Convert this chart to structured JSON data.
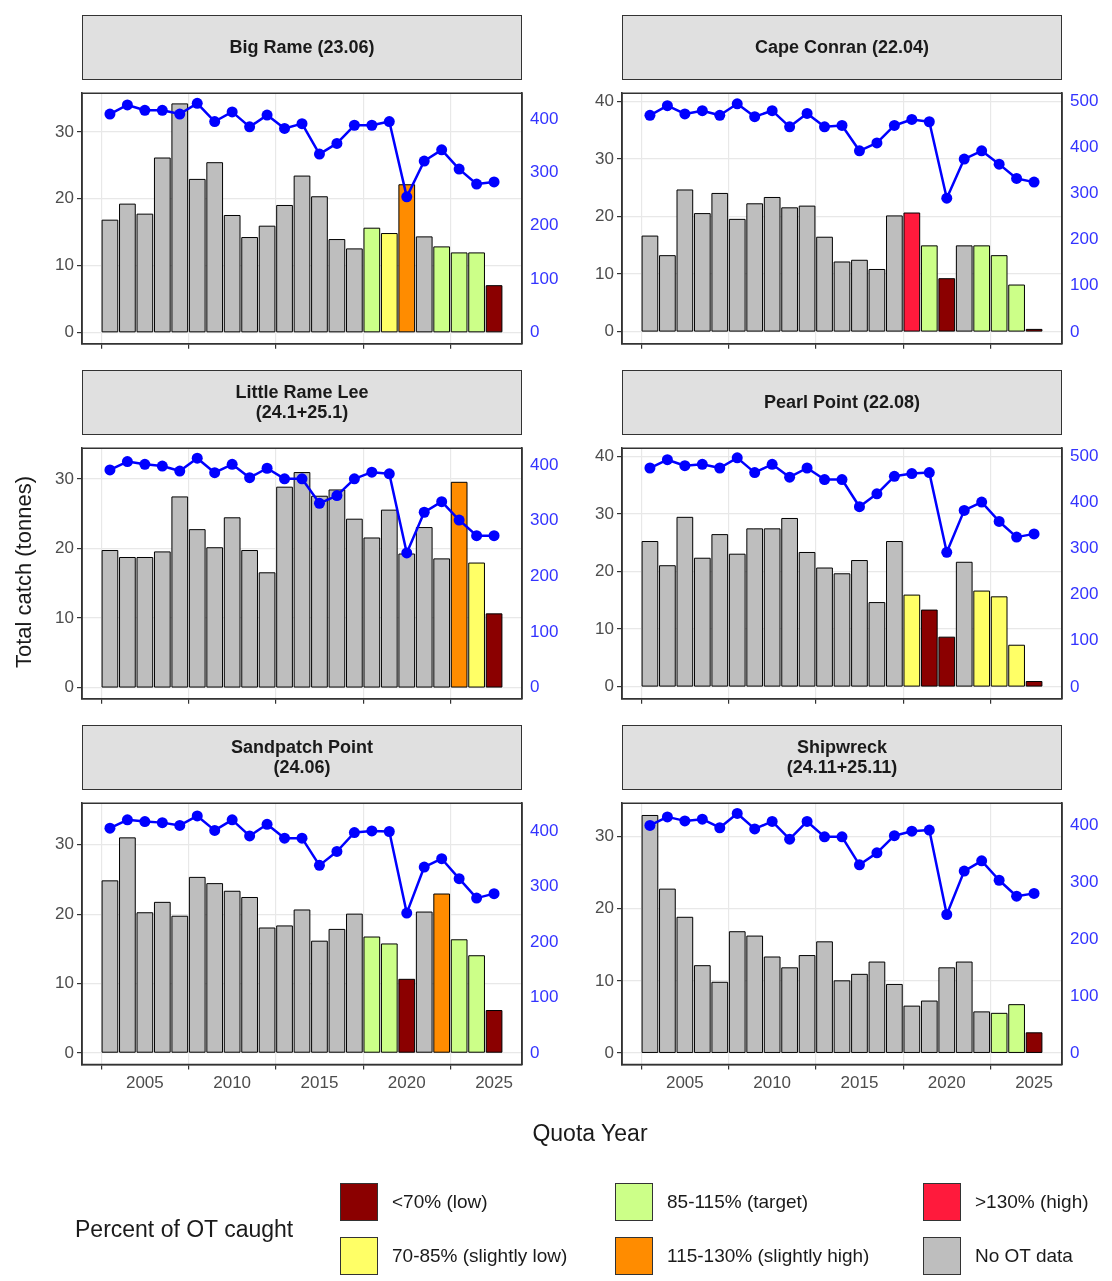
{
  "chart_data": [
    {
      "type": "bar",
      "title": "Big Rame (23.06)",
      "legend_title": "Percent of OT caught",
      "legend": "bottom",
      "stacked": true,
      "grid": true,
      "marker": "circle",
      "tick_labels": "y",
      "x": [
        2003,
        2004,
        2005,
        2006,
        2007,
        2008,
        2009,
        2010,
        2011,
        2012,
        2013,
        2014,
        2015,
        2016,
        2017,
        2018,
        2019,
        2020,
        2021,
        2022,
        2023,
        2024,
        2025
      ],
      "xlim": [
        2001.4,
        2026.6
      ],
      "xticks": [
        2005,
        2010,
        2015,
        2020,
        2025
      ],
      "ylim": [
        -1.7,
        35.8
      ],
      "yticks": [
        0,
        10,
        20,
        30
      ],
      "y2lim": [
        -21,
        448
      ],
      "y2ticks": [
        0,
        100,
        200,
        300,
        400
      ],
      "series": [
        {
          "name": "<70% (low)",
          "color": "#8b0000",
          "values": [
            null,
            null,
            null,
            null,
            null,
            null,
            null,
            null,
            null,
            null,
            null,
            null,
            null,
            null,
            null,
            null,
            null,
            null,
            null,
            null,
            null,
            null,
            7.0
          ]
        },
        {
          "name": "70-85% (slightly low)",
          "color": "#ffff66",
          "values": [
            null,
            null,
            null,
            null,
            null,
            null,
            null,
            null,
            null,
            null,
            null,
            null,
            null,
            null,
            null,
            null,
            14.8,
            null,
            null,
            null,
            null,
            null,
            null
          ]
        },
        {
          "name": "85-115% (target)",
          "color": "#ccff88",
          "values": [
            null,
            null,
            null,
            null,
            null,
            null,
            null,
            null,
            null,
            null,
            null,
            null,
            null,
            null,
            null,
            15.6,
            null,
            null,
            null,
            12.8,
            11.9,
            11.9,
            null
          ]
        },
        {
          "name": "115-130% (slightly high)",
          "color": "#ff8c00",
          "values": [
            null,
            null,
            null,
            null,
            null,
            null,
            null,
            null,
            null,
            null,
            null,
            null,
            null,
            null,
            null,
            null,
            null,
            22.1,
            null,
            null,
            null,
            null,
            null
          ]
        },
        {
          "name": ">130% (high)",
          "color": "#ff1a3c",
          "values": [
            null,
            null,
            null,
            null,
            null,
            null,
            null,
            null,
            null,
            null,
            null,
            null,
            null,
            null,
            null,
            null,
            null,
            null,
            null,
            null,
            null,
            null,
            null
          ]
        },
        {
          "name": "No OT data",
          "color": "#bebebe",
          "values": [
            16.8,
            19.2,
            17.7,
            26.1,
            34.2,
            22.9,
            25.4,
            17.5,
            14.2,
            15.9,
            19.0,
            23.4,
            20.3,
            13.9,
            12.5,
            null,
            null,
            null,
            14.3,
            null,
            null,
            null,
            null
          ]
        },
        {
          "type": "line",
          "axis": "y2",
          "color": "#0000ff",
          "values": [
            409,
            426,
            416,
            416,
            409,
            429,
            395,
            413,
            385,
            407,
            382,
            391,
            334,
            354,
            388,
            388,
            395,
            254,
            321,
            342,
            306,
            278,
            282
          ]
        }
      ]
    },
    {
      "type": "bar",
      "title": "Cape Conran (22.04)",
      "stacked": true,
      "grid": true,
      "marker": "circle",
      "tick_labels": "y",
      "x": [
        2003,
        2004,
        2005,
        2006,
        2007,
        2008,
        2009,
        2010,
        2011,
        2012,
        2013,
        2014,
        2015,
        2016,
        2017,
        2018,
        2019,
        2020,
        2021,
        2022,
        2023,
        2024,
        2025
      ],
      "xlim": [
        2001.4,
        2026.6
      ],
      "xticks": [
        2005,
        2010,
        2015,
        2020,
        2025
      ],
      "ylim": [
        -2.1,
        41.4
      ],
      "yticks": [
        0,
        10,
        20,
        30,
        40
      ],
      "y2lim": [
        -26,
        518
      ],
      "y2ticks": [
        0,
        100,
        200,
        300,
        400,
        500
      ],
      "series": [
        {
          "color": "#8b0000",
          "values": [
            null,
            null,
            null,
            null,
            null,
            null,
            null,
            null,
            null,
            null,
            null,
            null,
            null,
            null,
            null,
            null,
            null,
            9.2,
            null,
            null,
            null,
            null,
            0.4
          ]
        },
        {
          "color": "#ccff88",
          "values": [
            null,
            null,
            null,
            null,
            null,
            null,
            null,
            null,
            null,
            null,
            null,
            null,
            null,
            null,
            null,
            null,
            14.9,
            null,
            null,
            14.9,
            13.2,
            8.1,
            null
          ]
        },
        {
          "color": "#ff1a3c",
          "values": [
            null,
            null,
            null,
            null,
            null,
            null,
            null,
            null,
            null,
            null,
            null,
            null,
            null,
            null,
            null,
            20.6,
            null,
            null,
            null,
            null,
            null,
            null,
            null
          ]
        },
        {
          "color": "#bebebe",
          "values": [
            16.6,
            13.2,
            24.6,
            20.5,
            24.0,
            19.5,
            22.2,
            23.3,
            21.5,
            21.8,
            16.4,
            12.1,
            12.4,
            10.8,
            20.1,
            null,
            null,
            null,
            14.9,
            null,
            null,
            null,
            null
          ]
        },
        {
          "type": "line",
          "axis": "y2",
          "color": "#0000ff",
          "values": [
            470,
            491,
            473,
            480,
            470,
            495,
            467,
            480,
            445,
            474,
            445,
            448,
            393,
            410,
            448,
            461,
            456,
            290,
            375,
            393,
            364,
            333,
            325
          ]
        }
      ]
    },
    {
      "type": "bar",
      "title": "Little Rame Lee\n(24.1+25.1)",
      "ylabel": "Total catch (tonnes)",
      "stacked": true,
      "grid": true,
      "marker": "circle",
      "tick_labels": "y",
      "x": [
        2003,
        2004,
        2005,
        2006,
        2007,
        2008,
        2009,
        2010,
        2011,
        2012,
        2013,
        2014,
        2015,
        2016,
        2017,
        2018,
        2019,
        2020,
        2021,
        2022,
        2023,
        2024,
        2025
      ],
      "xlim": [
        2001.4,
        2026.6
      ],
      "xticks": [
        2005,
        2010,
        2015,
        2020,
        2025
      ],
      "ylim": [
        -1.6,
        34.4
      ],
      "yticks": [
        0,
        10,
        20,
        30
      ],
      "y2lim": [
        -20,
        430
      ],
      "y2ticks": [
        0,
        100,
        200,
        300,
        400
      ],
      "series": [
        {
          "color": "#8b0000",
          "values": [
            null,
            null,
            null,
            null,
            null,
            null,
            null,
            null,
            null,
            null,
            null,
            null,
            null,
            null,
            null,
            null,
            null,
            null,
            null,
            null,
            null,
            null,
            10.6
          ]
        },
        {
          "color": "#ffff66",
          "values": [
            null,
            null,
            null,
            null,
            null,
            null,
            null,
            null,
            null,
            null,
            null,
            null,
            null,
            null,
            null,
            null,
            null,
            null,
            null,
            null,
            null,
            17.9,
            null
          ]
        },
        {
          "color": "#ff8c00",
          "values": [
            null,
            null,
            null,
            null,
            null,
            null,
            null,
            null,
            null,
            null,
            null,
            null,
            null,
            null,
            null,
            null,
            null,
            null,
            null,
            null,
            29.5,
            null,
            null
          ]
        },
        {
          "color": "#bebebe",
          "values": [
            19.7,
            18.7,
            18.7,
            19.5,
            27.4,
            22.7,
            20.1,
            24.4,
            19.7,
            16.5,
            28.8,
            30.9,
            27.5,
            28.4,
            24.2,
            21.5,
            25.5,
            19.2,
            23.0,
            18.5,
            null,
            null,
            null
          ]
        },
        {
          "type": "line",
          "axis": "y2",
          "color": "#0000ff",
          "values": [
            391,
            406,
            401,
            398,
            389,
            412,
            386,
            401,
            377,
            394,
            375,
            375,
            331,
            345,
            375,
            387,
            384,
            242,
            315,
            334,
            301,
            273,
            273
          ]
        }
      ]
    },
    {
      "type": "bar",
      "title": "Pearl Point (22.08)",
      "stacked": true,
      "grid": true,
      "marker": "circle",
      "tick_labels": "y",
      "x": [
        2003,
        2004,
        2005,
        2006,
        2007,
        2008,
        2009,
        2010,
        2011,
        2012,
        2013,
        2014,
        2015,
        2016,
        2017,
        2018,
        2019,
        2020,
        2021,
        2022,
        2023,
        2024,
        2025
      ],
      "xlim": [
        2001.4,
        2026.6
      ],
      "xticks": [
        2005,
        2010,
        2015,
        2020,
        2025
      ],
      "ylim": [
        -2.1,
        41.4
      ],
      "yticks": [
        0,
        10,
        20,
        30,
        40
      ],
      "y2lim": [
        -26,
        518
      ],
      "y2ticks": [
        0,
        100,
        200,
        300,
        400,
        500
      ],
      "series": [
        {
          "color": "#8b0000",
          "values": [
            null,
            null,
            null,
            null,
            null,
            null,
            null,
            null,
            null,
            null,
            null,
            null,
            null,
            null,
            null,
            null,
            13.3,
            8.6,
            null,
            null,
            null,
            null,
            0.9
          ]
        },
        {
          "color": "#ffff66",
          "values": [
            null,
            null,
            null,
            null,
            null,
            null,
            null,
            null,
            null,
            null,
            null,
            null,
            null,
            null,
            null,
            15.9,
            null,
            null,
            null,
            16.6,
            15.6,
            7.2,
            null
          ]
        },
        {
          "color": "#bebebe",
          "values": [
            25.2,
            21.0,
            29.4,
            22.3,
            26.4,
            23.0,
            27.4,
            27.4,
            29.2,
            23.3,
            20.6,
            19.6,
            21.9,
            14.6,
            25.2,
            null,
            null,
            null,
            21.6,
            null,
            null,
            null,
            null
          ]
        },
        {
          "type": "line",
          "axis": "y2",
          "color": "#0000ff",
          "values": [
            475,
            493,
            480,
            483,
            475,
            497,
            465,
            483,
            455,
            475,
            450,
            450,
            391,
            419,
            457,
            463,
            465,
            292,
            383,
            401,
            359,
            325,
            332
          ]
        }
      ]
    },
    {
      "type": "bar",
      "title": "Sandpatch Point\n(24.06)",
      "xlabel": "Quota Year",
      "stacked": true,
      "grid": true,
      "marker": "circle",
      "x": [
        2003,
        2004,
        2005,
        2006,
        2007,
        2008,
        2009,
        2010,
        2011,
        2012,
        2013,
        2014,
        2015,
        2016,
        2017,
        2018,
        2019,
        2020,
        2021,
        2022,
        2023,
        2024,
        2025
      ],
      "xlim": [
        2001.4,
        2026.6
      ],
      "xticks": [
        2005,
        2010,
        2015,
        2020,
        2025
      ],
      "ylim": [
        -1.7,
        36.0
      ],
      "yticks": [
        0,
        10,
        20,
        30
      ],
      "y2lim": [
        -21,
        450
      ],
      "y2ticks": [
        0,
        100,
        200,
        300,
        400
      ],
      "series": [
        {
          "color": "#8b0000",
          "values": [
            null,
            null,
            null,
            null,
            null,
            null,
            null,
            null,
            null,
            null,
            null,
            null,
            null,
            null,
            null,
            null,
            null,
            10.6,
            null,
            null,
            null,
            null,
            6.1
          ]
        },
        {
          "color": "#ccff88",
          "values": [
            null,
            null,
            null,
            null,
            null,
            null,
            null,
            null,
            null,
            null,
            null,
            null,
            null,
            null,
            null,
            16.7,
            15.7,
            null,
            null,
            null,
            16.3,
            14.0,
            null
          ]
        },
        {
          "color": "#ff8c00",
          "values": [
            null,
            null,
            null,
            null,
            null,
            null,
            null,
            null,
            null,
            null,
            null,
            null,
            null,
            null,
            null,
            null,
            null,
            null,
            null,
            22.9,
            null,
            null,
            null
          ]
        },
        {
          "color": "#bebebe",
          "values": [
            24.8,
            31.0,
            20.2,
            21.7,
            19.7,
            25.3,
            24.4,
            23.3,
            22.4,
            18.0,
            18.3,
            20.6,
            16.1,
            17.8,
            20.0,
            null,
            null,
            null,
            20.3,
            null,
            null,
            null,
            null
          ]
        },
        {
          "type": "line",
          "axis": "y2",
          "color": "#0000ff",
          "values": [
            405,
            420,
            417,
            415,
            410,
            427,
            401,
            420,
            391,
            412,
            387,
            387,
            338,
            363,
            397,
            400,
            399,
            252,
            335,
            350,
            314,
            279,
            287
          ]
        }
      ]
    },
    {
      "type": "bar",
      "title": "Shipwreck\n(24.11+25.11)",
      "stacked": true,
      "grid": true,
      "marker": "circle",
      "x": [
        2003,
        2004,
        2005,
        2006,
        2007,
        2008,
        2009,
        2010,
        2011,
        2012,
        2013,
        2014,
        2015,
        2016,
        2017,
        2018,
        2019,
        2020,
        2021,
        2022,
        2023,
        2024,
        2025
      ],
      "xlim": [
        2001.4,
        2026.6
      ],
      "xticks": [
        2005,
        2010,
        2015,
        2020,
        2025
      ],
      "ylim": [
        -1.6,
        34.6
      ],
      "yticks": [
        0,
        10,
        20,
        30
      ],
      "y2lim": [
        -20,
        438
      ],
      "y2ticks": [
        0,
        100,
        200,
        300,
        400
      ],
      "series": [
        {
          "color": "#8b0000",
          "values": [
            null,
            null,
            null,
            null,
            null,
            null,
            null,
            null,
            null,
            null,
            null,
            null,
            null,
            null,
            null,
            null,
            null,
            null,
            null,
            null,
            null,
            null,
            2.8
          ]
        },
        {
          "color": "#ccff88",
          "values": [
            null,
            null,
            null,
            null,
            null,
            null,
            null,
            null,
            null,
            null,
            null,
            null,
            null,
            null,
            null,
            null,
            null,
            null,
            null,
            null,
            5.5,
            6.7,
            null
          ]
        },
        {
          "color": "#bebebe",
          "values": [
            32.9,
            22.7,
            18.8,
            12.1,
            9.8,
            16.8,
            16.2,
            13.3,
            11.8,
            13.5,
            15.4,
            10.0,
            10.9,
            12.6,
            9.5,
            6.5,
            7.2,
            11.8,
            12.6,
            5.7,
            null,
            null,
            null
          ]
        },
        {
          "type": "line",
          "axis": "y2",
          "color": "#0000ff",
          "values": [
            399,
            414,
            407,
            410,
            395,
            420,
            393,
            406,
            375,
            406,
            379,
            379,
            330,
            351,
            381,
            389,
            391,
            243,
            319,
            337,
            303,
            275,
            280
          ]
        }
      ]
    }
  ]
}
